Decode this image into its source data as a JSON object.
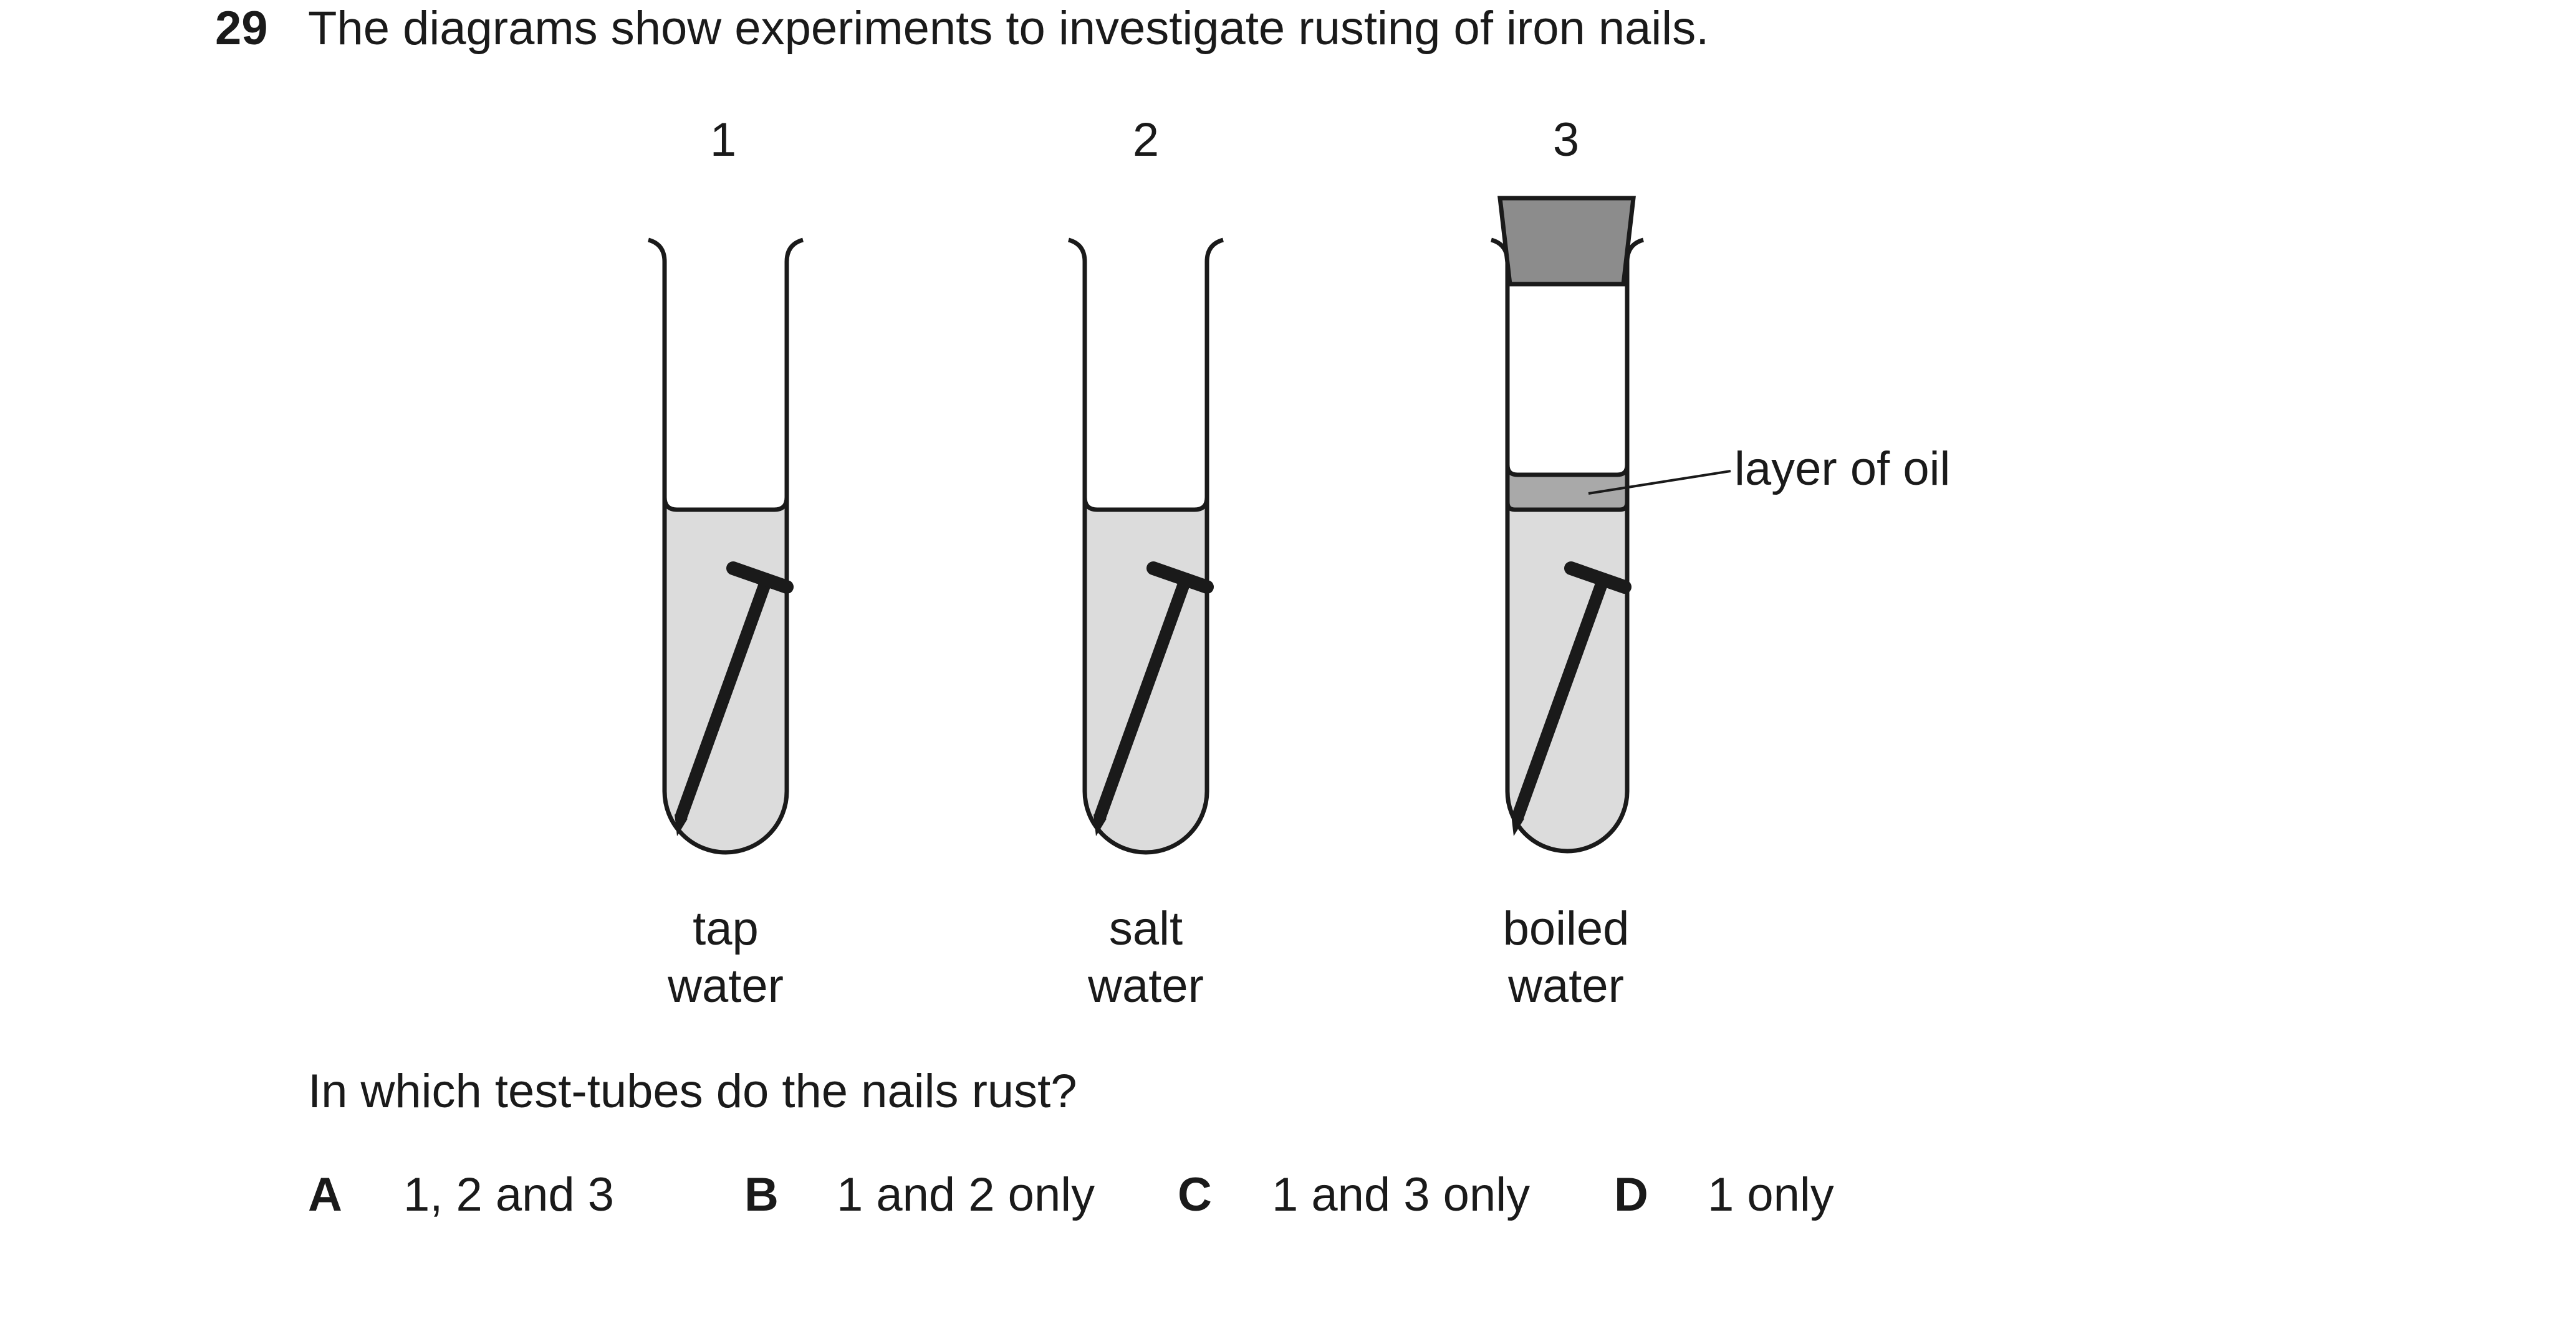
{
  "question": {
    "number": "29",
    "stem": "The diagrams show experiments to investigate rusting of iron nails.",
    "prompt": "In which test-tubes do the nails rust?"
  },
  "diagram": {
    "tubes": [
      {
        "number": "1",
        "label_line1": "tap",
        "label_line2": "water",
        "stoppered": false,
        "oil_layer": false
      },
      {
        "number": "2",
        "label_line1": "salt",
        "label_line2": "water",
        "stoppered": false,
        "oil_layer": false
      },
      {
        "number": "3",
        "label_line1": "boiled",
        "label_line2": "water",
        "stoppered": true,
        "oil_layer": true
      }
    ],
    "oil_label": "layer of oil",
    "colors": {
      "liquid": "#dcdcdc",
      "oil": "#a9a9a9",
      "stopper": "#8c8c8c",
      "outline": "#1a1a1a"
    }
  },
  "options": [
    {
      "letter": "A",
      "text": "1, 2 and 3"
    },
    {
      "letter": "B",
      "text": "1 and 2 only"
    },
    {
      "letter": "C",
      "text": "1 and 3 only"
    },
    {
      "letter": "D",
      "text": "1 only"
    }
  ]
}
